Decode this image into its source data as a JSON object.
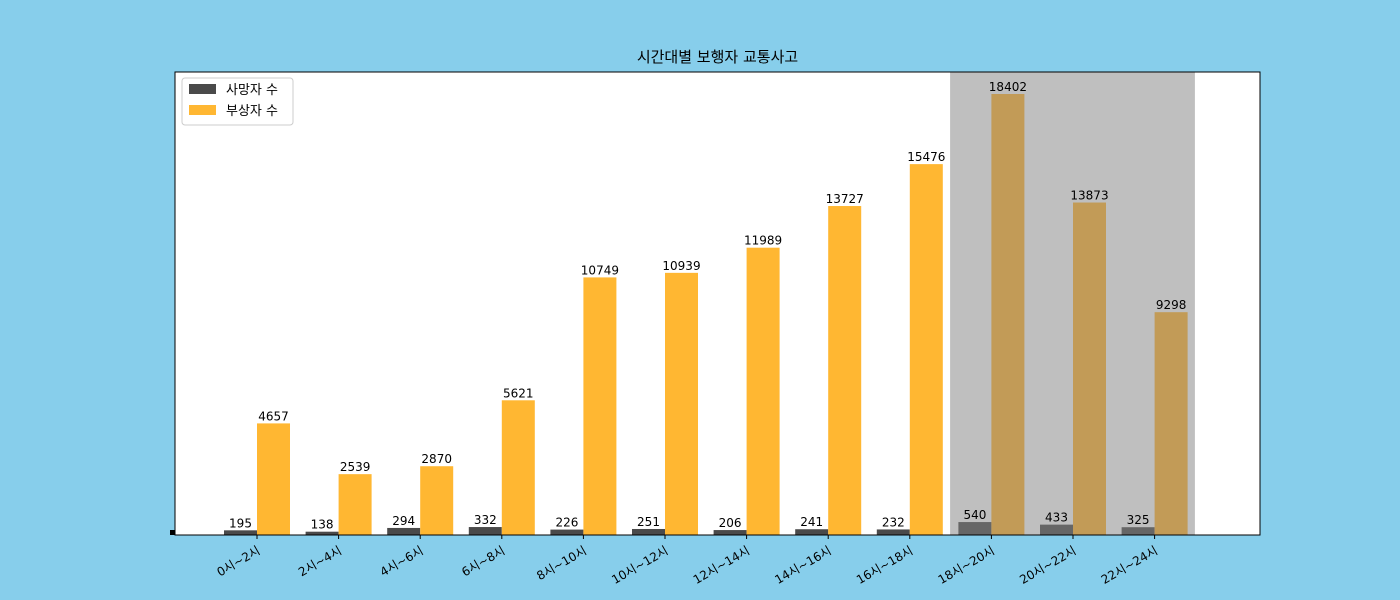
{
  "chart_data": {
    "type": "bar",
    "title": "시간대별 보행자 교통사고",
    "xlabel": "",
    "ylabel": "",
    "categories": [
      "0시~2시",
      "2시~4시",
      "4시~6시",
      "6시~8시",
      "8시~10시",
      "10시~12시",
      "12시~14시",
      "14시~16시",
      "16시~18시",
      "18시~20시",
      "20시~22시",
      "22시~24시"
    ],
    "series": [
      {
        "name": "사망자 수",
        "color": "#4a4a4a",
        "highlight_color": "#666666",
        "values": [
          195,
          138,
          294,
          332,
          226,
          251,
          206,
          241,
          232,
          540,
          433,
          325
        ]
      },
      {
        "name": "부상자 수",
        "color": "#ffb732",
        "highlight_color": "#c29b57",
        "values": [
          4657,
          2539,
          2870,
          5621,
          10749,
          10939,
          11989,
          13727,
          15476,
          18402,
          13873,
          9298
        ]
      }
    ],
    "highlight": {
      "categories": [
        "18시~20시",
        "20시~22시",
        "22시~24시"
      ],
      "color": "#bfbfbf"
    },
    "legend": "top-left",
    "grid": false
  }
}
